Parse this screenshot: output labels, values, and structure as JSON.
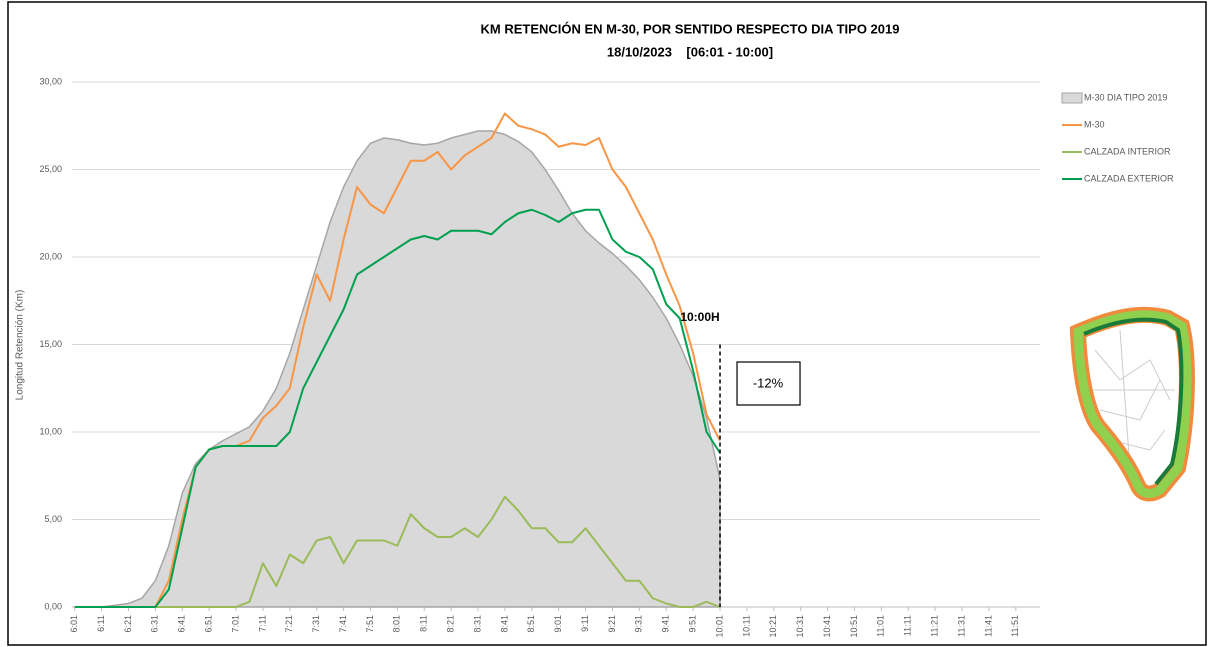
{
  "chart_data": {
    "type": "line",
    "title": "KM RETENCIÓN EN M-30, POR SENTIDO RESPECTO DIA TIPO 2019",
    "subtitle": "18/10/2023    [06:01 - 10:00]",
    "y_label": "Longitud Retención (Km)",
    "x": [
      "6:01",
      "6:06",
      "6:11",
      "6:16",
      "6:21",
      "6:26",
      "6:31",
      "6:36",
      "6:41",
      "6:46",
      "6:51",
      "6:56",
      "7:01",
      "7:06",
      "7:11",
      "7:16",
      "7:21",
      "7:26",
      "7:31",
      "7:36",
      "7:41",
      "7:46",
      "7:51",
      "7:56",
      "8:01",
      "8:06",
      "8:11",
      "8:16",
      "8:21",
      "8:26",
      "8:31",
      "8:36",
      "8:41",
      "8:46",
      "8:51",
      "8:56",
      "9:01",
      "9:06",
      "9:11",
      "9:16",
      "9:21",
      "9:26",
      "9:31",
      "9:36",
      "9:41",
      "9:46",
      "9:51",
      "9:56",
      "10:01"
    ],
    "xlim": [
      "6:00",
      "12:00"
    ],
    "xticks": [
      "6:01",
      "6:11",
      "6:21",
      "6:31",
      "6:41",
      "6:51",
      "7:01",
      "7:11",
      "7:21",
      "7:31",
      "7:41",
      "7:51",
      "8:01",
      "8:11",
      "8:21",
      "8:31",
      "8:41",
      "8:51",
      "9:01",
      "9:11",
      "9:21",
      "9:31",
      "9:41",
      "9:51",
      "10:01",
      "10:11",
      "10:21",
      "10:31",
      "10:41",
      "10:51",
      "11:01",
      "11:11",
      "11:21",
      "11:31",
      "11:41",
      "11:51"
    ],
    "ylim": [
      0,
      30
    ],
    "yticks": [
      {
        "value": 0,
        "label": "0,00"
      },
      {
        "value": 5,
        "label": "5,00"
      },
      {
        "value": 10,
        "label": "10,00"
      },
      {
        "value": 15,
        "label": "15,00"
      },
      {
        "value": 20,
        "label": "20,00"
      },
      {
        "value": 25,
        "label": "25,00"
      },
      {
        "value": 30,
        "label": "30,00"
      }
    ],
    "grid": true,
    "legend": "right",
    "series": [
      {
        "name": "M-30 DIA TIPO 2019",
        "type": "area",
        "color": "#d9d9d9",
        "values": [
          0,
          0,
          0,
          0.1,
          0.2,
          0.5,
          1.5,
          3.5,
          6.5,
          8.2,
          9.0,
          9.5,
          9.9,
          10.3,
          11.2,
          12.5,
          14.5,
          17,
          19.5,
          22,
          24,
          25.5,
          26.5,
          26.8,
          26.7,
          26.5,
          26.4,
          26.5,
          26.8,
          27.0,
          27.2,
          27.2,
          27.0,
          26.6,
          26.0,
          25.0,
          23.8,
          22.5,
          21.5,
          20.8,
          20.2,
          19.5,
          18.7,
          17.7,
          16.5,
          15.0,
          13.2,
          10.8,
          7.3
        ]
      },
      {
        "name": "M-30",
        "type": "line",
        "color": "#f79646",
        "values": [
          0,
          0,
          0,
          0,
          0,
          0,
          0,
          1.5,
          5,
          8,
          9.0,
          9.2,
          9.2,
          9.5,
          10.8,
          11.5,
          12.5,
          16,
          19,
          17.5,
          21,
          24,
          23,
          22.5,
          24,
          25.5,
          25.5,
          26,
          25,
          25.8,
          26.3,
          26.8,
          28.2,
          27.5,
          27.3,
          27.0,
          26.3,
          26.5,
          26.4,
          26.8,
          25,
          24,
          22.5,
          21,
          19,
          17.2,
          14.5,
          11,
          9.5
        ]
      },
      {
        "name": "CALZADA INTERIOR",
        "type": "line",
        "color": "#9bbb59",
        "values": [
          0,
          0,
          0,
          0,
          0,
          0,
          0,
          0,
          0,
          0,
          0,
          0,
          0,
          0.3,
          2.5,
          1.2,
          3,
          2.5,
          3.8,
          4.0,
          2.5,
          3.8,
          3.8,
          3.8,
          3.5,
          5.3,
          4.5,
          4.0,
          4.0,
          4.5,
          4.0,
          5.0,
          6.3,
          5.5,
          4.5,
          4.5,
          3.7,
          3.7,
          4.5,
          3.5,
          2.5,
          1.5,
          1.5,
          0.5,
          0.2,
          0,
          0,
          0.3,
          0
        ]
      },
      {
        "name": "CALZADA EXTERIOR",
        "type": "line",
        "color": "#00a050",
        "values": [
          0,
          0,
          0,
          0,
          0,
          0,
          0,
          1.0,
          4.5,
          8,
          9.0,
          9.2,
          9.2,
          9.2,
          9.2,
          9.2,
          10,
          12.5,
          14,
          15.5,
          17,
          19,
          19.5,
          20,
          20.5,
          21,
          21.2,
          21,
          21.5,
          21.5,
          21.5,
          21.3,
          22,
          22.5,
          22.7,
          22.4,
          22.0,
          22.5,
          22.7,
          22.7,
          21,
          20.3,
          20,
          19.3,
          17.3,
          16.5,
          13.5,
          10,
          8.8
        ]
      }
    ],
    "annotations": [
      {
        "text": "10:00H"
      },
      {
        "text": "-12%"
      }
    ]
  }
}
